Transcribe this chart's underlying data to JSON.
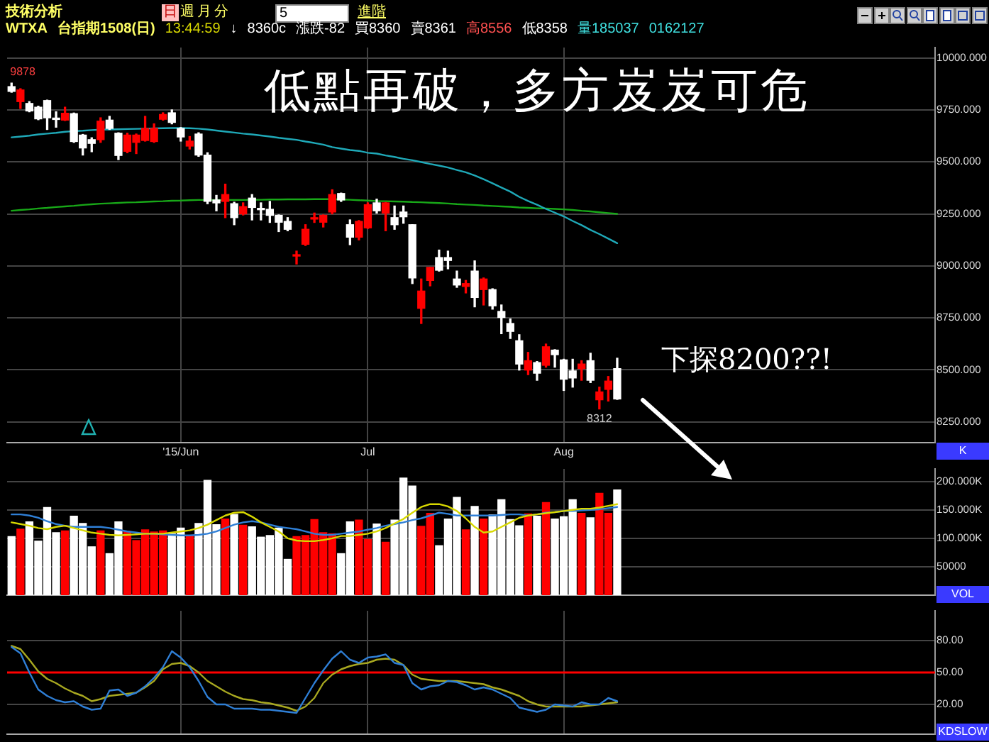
{
  "chart_data": [
    {
      "type": "candlestick",
      "title": "低點再破，多方岌岌可危",
      "annotations": [
        "9878",
        "8312",
        "下探8200??!",
        "K",
        "技術分析",
        "日",
        "週",
        "月",
        "分",
        "5",
        "進階",
        "WTXA",
        "台指期1508(日)",
        "13:44:59",
        "↓",
        "8360c",
        "漲跌-82",
        "買8360",
        "賣8361",
        "高8556",
        "低8358",
        "量185037",
        "0162127"
      ],
      "categories": [
        null,
        null,
        null,
        null,
        null,
        null,
        null,
        null,
        null,
        null,
        null,
        null,
        null,
        null,
        null,
        null,
        null,
        null,
        null,
        "'15/Jun",
        null,
        null,
        null,
        null,
        null,
        null,
        null,
        null,
        null,
        null,
        null,
        null,
        null,
        null,
        null,
        null,
        null,
        null,
        null,
        null,
        "Jul",
        null,
        null,
        null,
        null,
        null,
        null,
        null,
        null,
        null,
        null,
        null,
        null,
        null,
        null,
        null,
        null,
        null,
        null,
        null,
        null,
        null,
        "Aug",
        null,
        null,
        null,
        null,
        null,
        null
      ],
      "ohlc": [
        [
          9862,
          9879,
          9835,
          9839
        ],
        [
          9790,
          9852,
          9757,
          9846
        ],
        [
          9781,
          9790,
          9741,
          9745
        ],
        [
          9763,
          9768,
          9703,
          9707
        ],
        [
          9795,
          9797,
          9656,
          9712
        ],
        [
          9707,
          9741,
          9667,
          9704
        ],
        [
          9701,
          9763,
          9699,
          9734
        ],
        [
          9732,
          9735,
          9594,
          9598
        ],
        [
          9629,
          9632,
          9533,
          9567
        ],
        [
          9607,
          9616,
          9549,
          9589
        ],
        [
          9607,
          9712,
          9594,
          9696
        ],
        [
          9701,
          9719,
          9656,
          9661
        ],
        [
          9638,
          9640,
          9511,
          9531
        ],
        [
          9551,
          9638,
          9544,
          9629
        ],
        [
          9594,
          9634,
          9540,
          9629
        ],
        [
          9603,
          9719,
          9600,
          9661
        ],
        [
          9598,
          9683,
          9594,
          9661
        ],
        [
          9705,
          9736,
          9701,
          9728
        ],
        [
          9736,
          9750,
          9683,
          9690
        ],
        [
          9661,
          9665,
          9600,
          9620
        ],
        [
          9576,
          9622,
          9562,
          9600
        ],
        [
          9634,
          9640,
          9527,
          9533
        ],
        [
          9533,
          9544,
          9299,
          9310
        ],
        [
          9317,
          9339,
          9265,
          9303
        ],
        [
          9310,
          9393,
          9232,
          9343
        ],
        [
          9299,
          9306,
          9198,
          9232
        ],
        [
          9250,
          9303,
          9245,
          9285
        ],
        [
          9326,
          9343,
          9221,
          9281
        ],
        [
          9274,
          9303,
          9221,
          9270
        ],
        [
          9272,
          9310,
          9209,
          9243
        ],
        [
          9243,
          9245,
          9165,
          9210
        ],
        [
          9214,
          9232,
          9169,
          9176
        ],
        [
          9047,
          9071,
          9009,
          9049
        ],
        [
          9104,
          9198,
          9098,
          9176
        ],
        [
          9225,
          9254,
          9209,
          9228
        ],
        [
          9210,
          9245,
          9187,
          9243
        ],
        [
          9259,
          9366,
          9250,
          9343
        ],
        [
          9348,
          9350,
          9310,
          9317
        ],
        [
          9198,
          9221,
          9102,
          9138
        ],
        [
          9138,
          9218,
          9125,
          9214
        ],
        [
          9183,
          9303,
          9180,
          9294
        ],
        [
          9303,
          9321,
          9254,
          9265
        ],
        [
          9254,
          9305,
          9169,
          9303
        ],
        [
          9232,
          9288,
          9176,
          9198
        ],
        [
          9259,
          9288,
          9205,
          9236
        ],
        [
          9198,
          9198,
          8915,
          8942
        ],
        [
          8796,
          8937,
          8723,
          8879
        ],
        [
          8930,
          8993,
          8904,
          8993
        ],
        [
          9040,
          9076,
          8975,
          8979
        ],
        [
          9040,
          9071,
          8986,
          9026
        ],
        [
          8937,
          8975,
          8897,
          8908
        ],
        [
          8901,
          8930,
          8870,
          8915
        ],
        [
          8975,
          9024,
          8803,
          8848
        ],
        [
          8886,
          8942,
          8812,
          8937
        ],
        [
          8886,
          8890,
          8792,
          8808
        ],
        [
          8781,
          8812,
          8674,
          8752
        ],
        [
          8723,
          8745,
          8651,
          8685
        ],
        [
          8640,
          8669,
          8499,
          8528
        ],
        [
          8499,
          8584,
          8477,
          8544
        ],
        [
          8535,
          8540,
          8450,
          8484
        ],
        [
          8522,
          8624,
          8513,
          8611
        ],
        [
          8595,
          8597,
          8513,
          8573
        ],
        [
          8548,
          8551,
          8401,
          8455
        ],
        [
          8495,
          8551,
          8417,
          8461
        ],
        [
          8506,
          8544,
          8450,
          8528
        ],
        [
          8544,
          8580,
          8439,
          8450
        ],
        [
          8356,
          8417,
          8312,
          8394
        ],
        [
          8406,
          8468,
          8350,
          8446
        ],
        [
          8506,
          8556,
          8358,
          8360
        ]
      ],
      "colors": [
        "#ffffff",
        "#ff0000",
        "#ffffff",
        "#ffffff",
        "#ffffff",
        "#ffffff",
        "#ff0000",
        "#ffffff",
        "#ffffff",
        "#ffffff",
        "#ff0000",
        "#ffffff",
        "#ffffff",
        "#ff0000",
        "#ff0000",
        "#ff0000",
        "#ff0000",
        "#ff0000",
        "#ffffff",
        "#ffffff",
        "#ff0000",
        "#ffffff",
        "#ffffff",
        "#ffffff",
        "#ff0000",
        "#ffffff",
        "#ff0000",
        "#ffffff",
        "#ffffff",
        "#ffffff",
        "#ffffff",
        "#ffffff",
        "#ff0000",
        "#ff0000",
        "#ff0000",
        "#ff0000",
        "#ff0000",
        "#ffffff",
        "#ffffff",
        "#ff0000",
        "#ff0000",
        "#ffffff",
        "#ff0000",
        "#ffffff",
        "#ffffff",
        "#ffffff",
        "#ff0000",
        "#ff0000",
        "#ffffff",
        "#ffffff",
        "#ffffff",
        "#ff0000",
        "#ffffff",
        "#ff0000",
        "#ffffff",
        "#ffffff",
        "#ffffff",
        "#ffffff",
        "#ff0000",
        "#ffffff",
        "#ff0000",
        "#ffffff",
        "#ffffff",
        "#ffffff",
        "#ff0000",
        "#ffffff",
        "#ff0000",
        "#ff0000",
        "#ffffff"
      ],
      "series": [
        {
          "type": "line",
          "color": "#1fa9b8",
          "values": [
            9618,
            9622,
            9626,
            9632,
            9636,
            9640,
            9645,
            9648,
            9650,
            9653,
            9655,
            9656,
            9657,
            9658,
            9659,
            9660,
            9661,
            9662,
            9663,
            9663,
            9662,
            9660,
            9656,
            9651,
            9646,
            9641,
            9636,
            9632,
            9627,
            9622,
            9616,
            9611,
            9606,
            9598,
            9591,
            9583,
            9571,
            9564,
            9557,
            9553,
            9544,
            9540,
            9531,
            9524,
            9515,
            9508,
            9499,
            9490,
            9482,
            9473,
            9461,
            9450,
            9435,
            9417,
            9397,
            9377,
            9357,
            9332,
            9312,
            9294,
            9274,
            9256,
            9238,
            9216,
            9196,
            9173,
            9153,
            9131,
            9109
          ]
        },
        {
          "type": "line",
          "color": "#18a818",
          "values": [
            9265,
            9269,
            9272,
            9276,
            9279,
            9283,
            9286,
            9289,
            9293,
            9296,
            9299,
            9301,
            9303,
            9305,
            9306,
            9308,
            9310,
            9311,
            9313,
            9314,
            9316,
            9317,
            9317,
            9317,
            9317,
            9317,
            9317,
            9318,
            9318,
            9319,
            9319,
            9320,
            9320,
            9320,
            9321,
            9321,
            9321,
            9319,
            9318,
            9316,
            9314,
            9312,
            9311,
            9310,
            9309,
            9307,
            9306,
            9304,
            9302,
            9300,
            9297,
            9295,
            9293,
            9290,
            9288,
            9286,
            9284,
            9281,
            9279,
            9277,
            9276,
            9274,
            9272,
            9269,
            9265,
            9262,
            9258,
            9254,
            9250
          ]
        }
      ],
      "ylim": [
        8150,
        10050
      ],
      "yticks": [
        {
          "value": 8250,
          "label": "8250.000"
        },
        {
          "value": 8500,
          "label": "8500.000"
        },
        {
          "value": 8750,
          "label": "8750.000"
        },
        {
          "value": 9000,
          "label": "9000.000"
        },
        {
          "value": 9250,
          "label": "9250.000"
        },
        {
          "value": 9500,
          "label": "9500.000"
        },
        {
          "value": 9750,
          "label": "9750.000"
        },
        {
          "value": 10000,
          "label": "10000.000"
        }
      ],
      "grid": true
    },
    {
      "type": "bar",
      "annotations": [
        "VOL"
      ],
      "categories": [
        null,
        null,
        null,
        null,
        null,
        null,
        null,
        null,
        null,
        null,
        null,
        null,
        null,
        null,
        null,
        null,
        null,
        null,
        null,
        null,
        null,
        null,
        null,
        null,
        null,
        null,
        null,
        null,
        null,
        null,
        null,
        null,
        null,
        null,
        null,
        null,
        null,
        null,
        null,
        null,
        null,
        null,
        null,
        null,
        null,
        null,
        null,
        null,
        null,
        null,
        null,
        null,
        null,
        null,
        null,
        null,
        null,
        null,
        null,
        null,
        null,
        null,
        null,
        null,
        null,
        null,
        null,
        null,
        null
      ],
      "values": [
        103000,
        116000,
        129000,
        95000,
        154000,
        110000,
        113000,
        139000,
        126000,
        85000,
        113000,
        73000,
        129000,
        112000,
        96000,
        115000,
        111000,
        113000,
        108000,
        118000,
        104000,
        126000,
        202000,
        124000,
        134000,
        142000,
        123000,
        120000,
        102000,
        105000,
        118000,
        63000,
        103000,
        105000,
        133000,
        110000,
        108000,
        73000,
        129000,
        132000,
        98000,
        125000,
        93000,
        132000,
        206000,
        192000,
        121000,
        144000,
        87000,
        134000,
        172000,
        115000,
        156000,
        134000,
        141000,
        168000,
        133000,
        122000,
        143000,
        139000,
        163000,
        134000,
        138000,
        168000,
        144000,
        136000,
        179000,
        144000,
        185000
      ],
      "colors": [
        "#ffffff",
        "#ff0000",
        "#ffffff",
        "#ffffff",
        "#ffffff",
        "#ffffff",
        "#ff0000",
        "#ffffff",
        "#ffffff",
        "#ffffff",
        "#ff0000",
        "#ffffff",
        "#ffffff",
        "#ff0000",
        "#ff0000",
        "#ff0000",
        "#ff0000",
        "#ff0000",
        "#ffffff",
        "#ffffff",
        "#ff0000",
        "#ffffff",
        "#ffffff",
        "#ffffff",
        "#ff0000",
        "#ffffff",
        "#ff0000",
        "#ffffff",
        "#ffffff",
        "#ffffff",
        "#ffffff",
        "#ffffff",
        "#ff0000",
        "#ff0000",
        "#ff0000",
        "#ff0000",
        "#ff0000",
        "#ffffff",
        "#ffffff",
        "#ff0000",
        "#ff0000",
        "#ffffff",
        "#ff0000",
        "#ffffff",
        "#ffffff",
        "#ffffff",
        "#ff0000",
        "#ff0000",
        "#ffffff",
        "#ffffff",
        "#ffffff",
        "#ff0000",
        "#ffffff",
        "#ff0000",
        "#ffffff",
        "#ffffff",
        "#ffffff",
        "#ffffff",
        "#ff0000",
        "#ffffff",
        "#ff0000",
        "#ffffff",
        "#ffffff",
        "#ffffff",
        "#ff0000",
        "#ffffff",
        "#ff0000",
        "#ff0000",
        "#ffffff"
      ],
      "series": [
        {
          "type": "line",
          "color": "#d8d800",
          "values": [
            128000,
            125000,
            122000,
            118000,
            116000,
            120000,
            122000,
            118000,
            114000,
            110000,
            108000,
            106000,
            105000,
            106000,
            107000,
            108000,
            108000,
            108000,
            110000,
            112000,
            114000,
            118000,
            124000,
            132000,
            140000,
            145000,
            146000,
            138000,
            128000,
            120000,
            112000,
            100000,
            96000,
            95000,
            95000,
            97000,
            100000,
            104000,
            104000,
            106000,
            108000,
            112000,
            118000,
            126000,
            134000,
            145000,
            155000,
            160000,
            160000,
            156000,
            148000,
            135000,
            120000,
            110000,
            112000,
            120000,
            128000,
            136000,
            140000,
            142000,
            144000,
            146000,
            148000,
            150000,
            152000,
            152000,
            154000,
            157000,
            160000
          ]
        },
        {
          "type": "line",
          "color": "#2f7fd6",
          "values": [
            142000,
            142000,
            140000,
            136000,
            130000,
            125000,
            122000,
            120000,
            120000,
            120000,
            120000,
            118000,
            115000,
            112000,
            110000,
            108000,
            108000,
            107000,
            106000,
            105000,
            105000,
            106000,
            108000,
            112000,
            118000,
            124000,
            128000,
            130000,
            128000,
            124000,
            120000,
            118000,
            116000,
            112000,
            108000,
            106000,
            106000,
            108000,
            110000,
            112000,
            115000,
            118000,
            122000,
            125000,
            128000,
            132000,
            135000,
            140000,
            145000,
            143000,
            140000,
            140000,
            140000,
            140000,
            140000,
            141000,
            142000,
            142000,
            140000,
            142000,
            145000,
            146000,
            148000,
            148000,
            149000,
            150000,
            151000,
            153000,
            155000
          ]
        }
      ],
      "ylim": [
        0,
        222000
      ],
      "yticks": [
        {
          "value": 50000,
          "label": "50000"
        },
        {
          "value": 100000,
          "label": "100.000K"
        },
        {
          "value": 150000,
          "label": "150.000K"
        },
        {
          "value": 200000,
          "label": "200.000K"
        }
      ],
      "grid": true,
      "tick_labels": "y"
    },
    {
      "type": "line",
      "annotations": [
        "KDSLOW"
      ],
      "categories": [
        null,
        null,
        null,
        null,
        null,
        null,
        null,
        null,
        null,
        null,
        null,
        null,
        null,
        null,
        null,
        null,
        null,
        null,
        null,
        null,
        null,
        null,
        null,
        null,
        null,
        null,
        null,
        null,
        null,
        null,
        null,
        null,
        null,
        null,
        null,
        null,
        null,
        null,
        null,
        null,
        null,
        null,
        null,
        null,
        null,
        null,
        null,
        null,
        null,
        null,
        null,
        null,
        null,
        null,
        null,
        null,
        null,
        null,
        null,
        null,
        null,
        null,
        null,
        null,
        null,
        null,
        null,
        null,
        null
      ],
      "series": [
        {
          "color": "#2f7fd6",
          "values": [
            74,
            68,
            50,
            34,
            28,
            24,
            22,
            23,
            18,
            15,
            16,
            33,
            34,
            28,
            31,
            37,
            45,
            55,
            70,
            64,
            55,
            42,
            27,
            20,
            20,
            16,
            16,
            16,
            15,
            15,
            14,
            13,
            12,
            26,
            40,
            52,
            63,
            70,
            62,
            59,
            64,
            65,
            67,
            59,
            57,
            40,
            34,
            37,
            38,
            42,
            41,
            38,
            34,
            36,
            34,
            30,
            26,
            17,
            15,
            13,
            15,
            20,
            19,
            18,
            22,
            20,
            20,
            26,
            23
          ]
        },
        {
          "color": "#a8a820",
          "values": [
            75,
            72,
            62,
            51,
            44,
            40,
            35,
            31,
            28,
            23,
            25,
            28,
            29,
            30,
            31,
            36,
            42,
            53,
            58,
            59,
            56,
            50,
            42,
            37,
            32,
            28,
            25,
            24,
            22,
            21,
            19,
            17,
            14,
            18,
            26,
            40,
            48,
            53,
            56,
            58,
            59,
            62,
            63,
            62,
            57,
            48,
            44,
            43,
            42,
            42,
            42,
            41,
            40,
            39,
            36,
            34,
            31,
            28,
            23,
            20,
            18,
            18,
            18,
            18,
            18,
            19,
            20,
            21,
            22
          ]
        }
      ],
      "ylim": [
        -8,
        108
      ],
      "yticks": [
        {
          "value": 20,
          "label": "20.00"
        },
        {
          "value": 50,
          "label": "50.00"
        },
        {
          "value": 80,
          "label": "80.00"
        }
      ],
      "ref_lines": [
        {
          "axis": "y",
          "value": 50,
          "color": "#ff0000"
        }
      ],
      "grid": true,
      "tick_labels": "y"
    }
  ]
}
